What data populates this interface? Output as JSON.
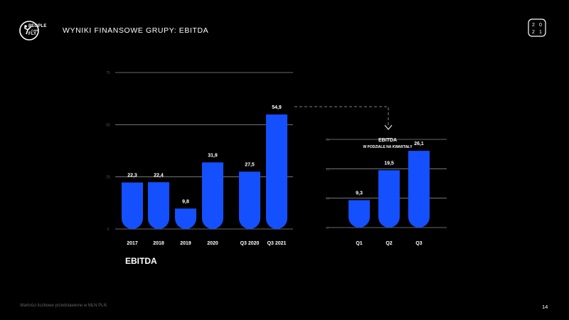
{
  "header": {
    "logo_line1": "PEOPLE",
    "logo_line2": "CAN",
    "logo_line3": "FLY",
    "title": "WYNIKI FINANSOWE GRUPY: EBITDA",
    "badge": [
      "2",
      "0",
      "2",
      "1"
    ]
  },
  "footer": {
    "note": "Wartości liczbowe przedstawione w MLN PLN",
    "page": "14"
  },
  "colors": {
    "bar": "#1550ff",
    "background": "#000000",
    "grid": "#8a8a8a",
    "text": "#ffffff"
  },
  "chart_data": [
    {
      "type": "bar",
      "title": "EBITDA",
      "categories": [
        "2017",
        "2018",
        "2019",
        "2020",
        "Q3 2020",
        "Q3 2021"
      ],
      "values": [
        22.3,
        22.4,
        9.8,
        31.9,
        27.5,
        54.9
      ],
      "data_labels": [
        "22,3",
        "22,4",
        "9,8",
        "31,9",
        "27,5",
        "54,9"
      ],
      "ylim": [
        0,
        75
      ],
      "yticks": [
        "0",
        "25",
        "50",
        "75"
      ],
      "grid": true
    },
    {
      "type": "bar",
      "title": "EBITDA",
      "subtitle": "W PODZIALE NA KWARTAŁY",
      "categories": [
        "Q1",
        "Q2",
        "Q3"
      ],
      "values": [
        9.3,
        19.5,
        26.1
      ],
      "data_labels": [
        "9,3",
        "19,5",
        "26,1"
      ],
      "ylim": [
        0,
        30
      ],
      "yticks": [
        "0",
        "10",
        "20",
        "30"
      ],
      "grid": true
    }
  ]
}
